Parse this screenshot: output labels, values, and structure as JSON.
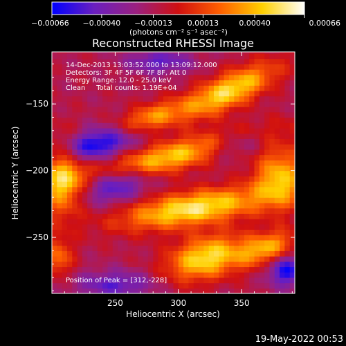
{
  "chart_data": {
    "type": "heatmap",
    "title": "Reconstructed RHESSI Image",
    "xlabel": "Heliocentric X (arcsec)",
    "ylabel": "Heliocentric Y (arcsec)",
    "xlim": [
      200,
      392
    ],
    "ylim": [
      -292,
      -111
    ],
    "x_ticks": [
      250,
      300,
      350
    ],
    "x_tick_labels": [
      "250",
      "300",
      "350"
    ],
    "y_ticks": [
      -150,
      -200,
      -250
    ],
    "y_tick_labels": [
      "−150",
      "−200",
      "−250"
    ],
    "colorbar": {
      "range": [
        -0.00066,
        0.00066
      ],
      "ticks": [
        -0.00066,
        -0.0004,
        -0.00013,
        0.00013,
        0.0004,
        0.00066
      ],
      "tick_labels": [
        "−0.00066",
        "−0.00040",
        "−0.00013",
        "0.00013",
        "0.00040",
        "0.00066"
      ],
      "unit_label": "(photons cm⁻² s⁻¹ asec⁻²)",
      "colors": [
        "#0000ff",
        "#6a1fbf",
        "#9a2080",
        "#d01010",
        "#ff6000",
        "#ffd000",
        "#ffffff"
      ]
    },
    "annotations": [
      "14-Dec-2013 13:03:52.000 to 13:09:12.000",
      "Detectors: 3F 4F 5F 6F 7F 8F, Att 0",
      "Energy Range: 12.0 - 25.0 keV",
      "Clean     Total counts: 1.19E+04"
    ],
    "peak_text": "Position of Peak = [312,-228]",
    "peak": [
      312,
      -228
    ],
    "bright_features": [
      {
        "x": 340,
        "y": -140,
        "sx": 28,
        "sy": 9,
        "amp": 0.00062,
        "rot": -0.42
      },
      {
        "x": 300,
        "y": -188,
        "sx": 52,
        "sy": 8,
        "amp": 0.00058,
        "rot": -0.22
      },
      {
        "x": 208,
        "y": -205,
        "sx": 12,
        "sy": 20,
        "amp": 0.00055,
        "rot": 0.0
      },
      {
        "x": 312,
        "y": -228,
        "sx": 40,
        "sy": 9,
        "amp": 0.00066,
        "rot": -0.15
      },
      {
        "x": 380,
        "y": -205,
        "sx": 14,
        "sy": 16,
        "amp": 0.00052,
        "rot": 0.0
      },
      {
        "x": 322,
        "y": -265,
        "sx": 22,
        "sy": 11,
        "amp": 0.00063,
        "rot": -0.25
      },
      {
        "x": 370,
        "y": -258,
        "sx": 16,
        "sy": 8,
        "amp": 0.00048,
        "rot": -0.3
      },
      {
        "x": 278,
        "y": -160,
        "sx": 20,
        "sy": 7,
        "amp": 0.00042,
        "rot": -0.3
      },
      {
        "x": 205,
        "y": -265,
        "sx": 8,
        "sy": 10,
        "amp": 0.00035,
        "rot": 0.0
      }
    ],
    "dim_features": [
      {
        "x": 235,
        "y": -180,
        "sx": 22,
        "sy": 8,
        "amp": -0.00055,
        "rot": -0.2
      },
      {
        "x": 250,
        "y": -210,
        "sx": 18,
        "sy": 9,
        "amp": -0.00045,
        "rot": -0.2
      },
      {
        "x": 345,
        "y": -180,
        "sx": 20,
        "sy": 7,
        "amp": -0.0004,
        "rot": -0.2
      },
      {
        "x": 385,
        "y": -275,
        "sx": 10,
        "sy": 8,
        "amp": -0.0005,
        "rot": 0.0
      },
      {
        "x": 250,
        "y": -285,
        "sx": 22,
        "sy": 7,
        "amp": -0.00035,
        "rot": 0.0
      },
      {
        "x": 285,
        "y": -118,
        "sx": 18,
        "sy": 6,
        "amp": -0.00035,
        "rot": 0.0
      }
    ]
  },
  "footer": {
    "timestamp": "19-May-2022 00:53"
  }
}
